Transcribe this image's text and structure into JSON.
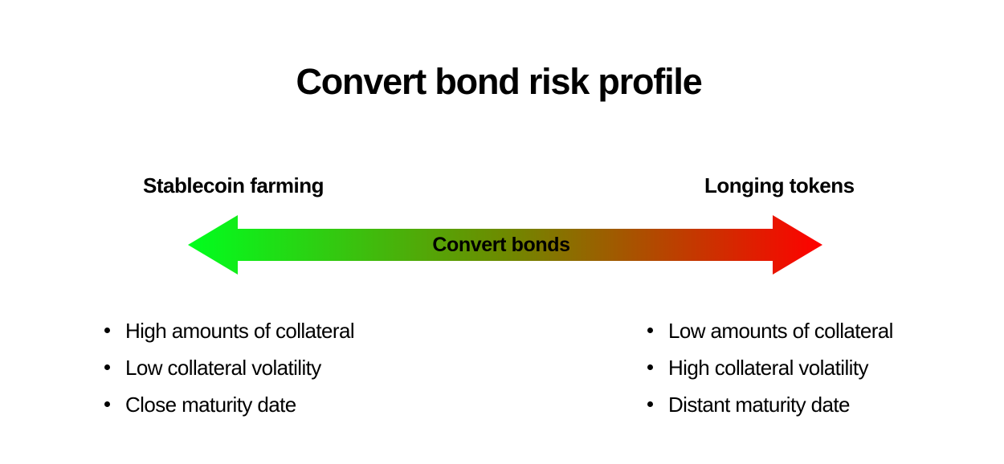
{
  "title": "Convert bond risk profile",
  "spectrum": {
    "left_label": "Stablecoin farming",
    "right_label": "Longing tokens",
    "center_label": "Convert bonds",
    "colors": {
      "left": "#00ff1e",
      "middle": "#6e8a00",
      "right": "#ff0000"
    }
  },
  "left_list": {
    "items": [
      "High amounts of collateral",
      "Low collateral volatility",
      "Close maturity date"
    ]
  },
  "right_list": {
    "items": [
      "Low amounts of collateral",
      "High collateral volatility",
      "Distant maturity date"
    ]
  }
}
